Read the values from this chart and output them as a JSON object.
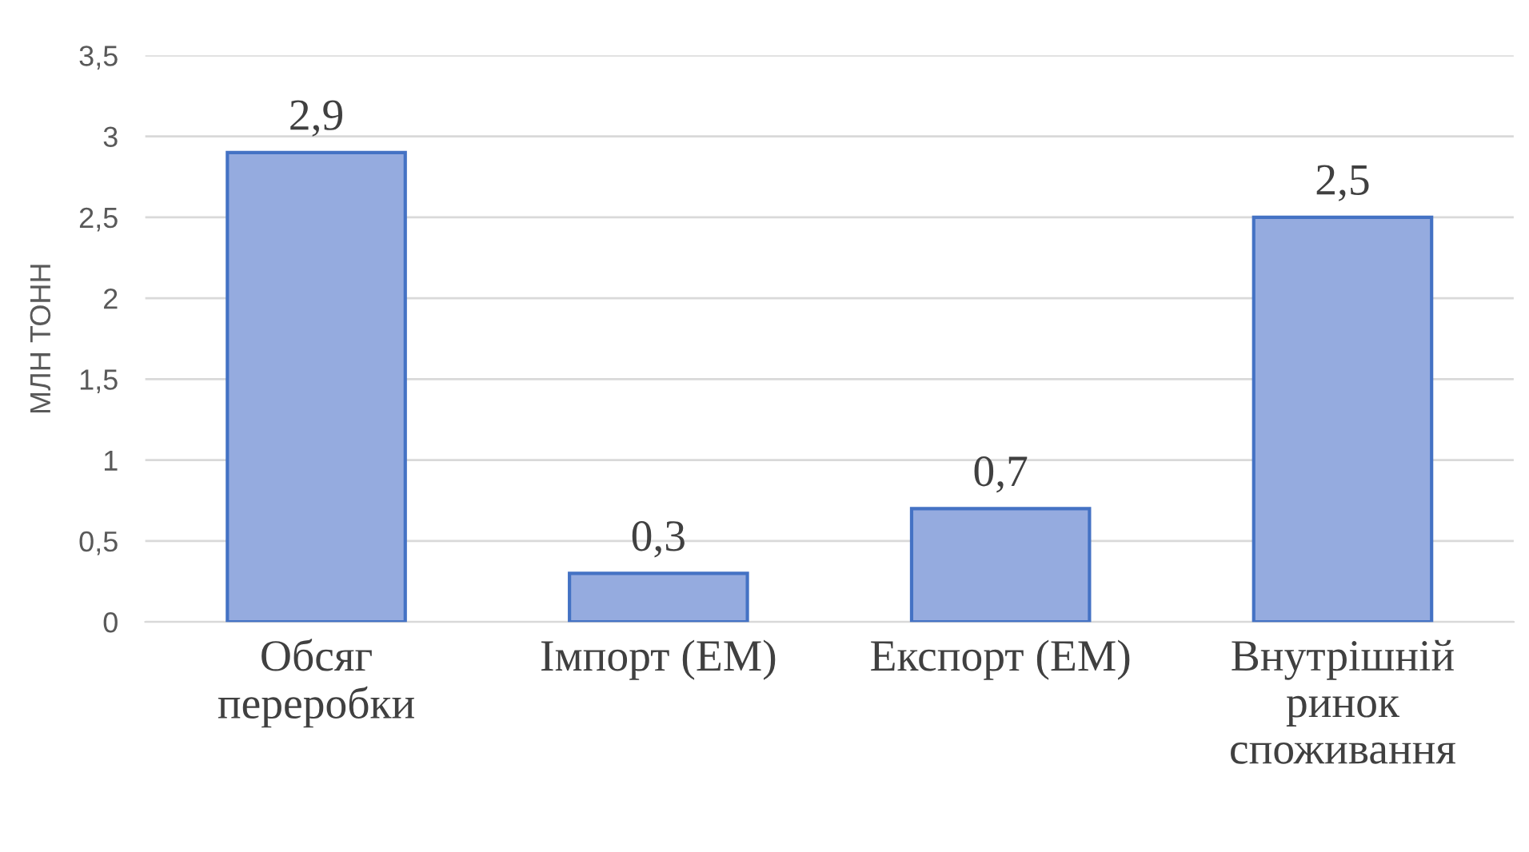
{
  "chart_data": {
    "type": "bar",
    "ylabel": "МЛН ТОНН",
    "categories": [
      "Обсяг\nпереробки",
      "Імпорт (ЕМ)",
      "Експорт (ЕМ)",
      "Внутрішній\nринок\nспоживання"
    ],
    "values": [
      2.9,
      0.3,
      0.7,
      2.5
    ],
    "value_labels": [
      "2,9",
      "0,3",
      "0,7",
      "2,5"
    ],
    "color": "#95abdf",
    "ylim": [
      0,
      3.5
    ],
    "yticks": [
      0,
      {
        "value": 0.5,
        "label": "0,5"
      },
      1,
      {
        "value": 1.5,
        "label": "1,5"
      },
      2,
      {
        "value": 2.5,
        "label": "2,5"
      },
      3,
      {
        "value": 3.5,
        "label": "3,5"
      }
    ],
    "grid": "y"
  }
}
